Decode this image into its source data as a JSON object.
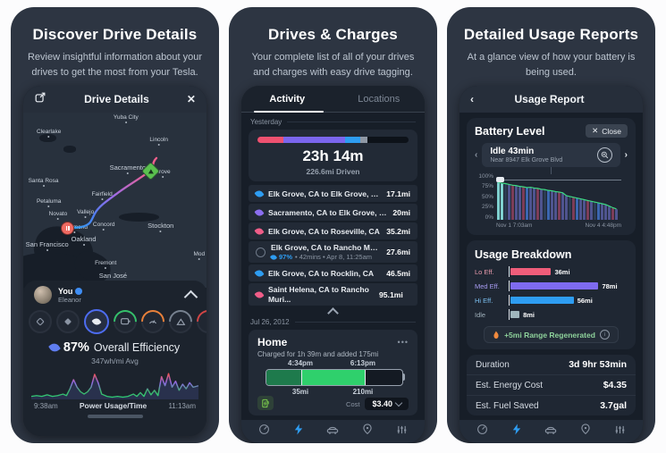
{
  "icons": {
    "close": "✕",
    "back": "‹",
    "forward": "›",
    "more": "•••",
    "info": "i"
  },
  "panel1": {
    "headline": "Discover Drive Details",
    "description": "Review insightful information about your drives to get the most from your Tesla.",
    "nav_title": "Drive Details",
    "map": {
      "cities": [
        "Yuba City",
        "Clearlake",
        "Lincoln",
        "Sacramento",
        "Santa Rosa",
        "Petaluma",
        "Fairfield",
        "Novato",
        "Vallejo",
        "Richmond",
        "Concord",
        "Stockton",
        "Oakland",
        "San Francisco",
        "Fremont",
        "San José",
        "Mod",
        "Grove"
      ]
    },
    "driver": {
      "you": "You",
      "car": "Eleanor"
    },
    "efficiency": {
      "value": "87%",
      "label": "Overall Efficiency",
      "avg": "347wh/mi Avg"
    }
  },
  "panel2": {
    "headline": "Drives & Charges",
    "description": "Your complete list of all of your drives and charges with easy drive tagging.",
    "tabs": [
      "Activity",
      "Locations"
    ],
    "section_date1": "Yesterday",
    "summary": {
      "duration": "23h 14m",
      "distance": "226.6mi Driven"
    },
    "drives": [
      {
        "route": "Elk Grove, CA to Elk Grove, CA",
        "distance": "17.1mi",
        "leaf_color": "#2e9df2"
      },
      {
        "route": "Sacramento, CA to Elk Grove, CA",
        "distance": "20mi",
        "leaf_color": "#8b6ef0"
      },
      {
        "route": "Elk Grove, CA to Roseville, CA",
        "distance": "35.2mi",
        "leaf_color": "#ef5d88"
      },
      {
        "route": "Elk Grove, CA to Rancho Muriett...",
        "distance": "27.6mi",
        "leaf_color": "#2e9df2",
        "meta_eff": "97%",
        "meta": "• 42mins • Apr 8, 11:25am"
      },
      {
        "route": "Elk Grove, CA to Rocklin, CA",
        "distance": "46.5mi",
        "leaf_color": "#2e9df2"
      },
      {
        "route": "Saint Helena, CA to Rancho Muri...",
        "distance": "95.1mi",
        "leaf_color": "#ef5d88"
      }
    ],
    "section_date2": "Jul 26, 2012",
    "charge": {
      "title": "Home",
      "subtitle": "Charged for 1h 39m and added 175mi",
      "start_time": "4:34pm",
      "end_time": "6:13pm",
      "start_mi": "35mi",
      "end_mi": "210mi",
      "cost_label": "Cost",
      "cost_value": "$3.40"
    }
  },
  "panel3": {
    "headline": "Detailed Usage Reports",
    "description": "At a glance view of how your battery is being used.",
    "nav_title": "Usage Report",
    "battery_section": {
      "title": "Battery Level",
      "close_label": "Close",
      "event_title": "Idle 43min",
      "event_subtitle": "Near 8947 Elk Grove Blvd"
    },
    "usage_section": {
      "title": "Usage Breakdown",
      "regen_label": "+5mi Range Regenerated"
    },
    "stats": [
      {
        "label": "Duration",
        "value": "3d 9hr 53min"
      },
      {
        "label": "Est. Energy Cost",
        "value": "$4.35"
      },
      {
        "label": "Est. Fuel Saved",
        "value": "3.7gal"
      }
    ]
  },
  "chart_data": [
    {
      "id": "power_usage",
      "type": "line",
      "title": "Power Usage/Time",
      "x_range": [
        "9:38am",
        "11:13am"
      ],
      "ylabel": "power",
      "baseline_y": 36,
      "points": [
        [
          0,
          36
        ],
        [
          6,
          35
        ],
        [
          12,
          36
        ],
        [
          18,
          34
        ],
        [
          24,
          36
        ],
        [
          30,
          35
        ],
        [
          36,
          33
        ],
        [
          40,
          35
        ],
        [
          44,
          26
        ],
        [
          48,
          14
        ],
        [
          52,
          24
        ],
        [
          56,
          30
        ],
        [
          60,
          33
        ],
        [
          64,
          30
        ],
        [
          68,
          24
        ],
        [
          72,
          7
        ],
        [
          76,
          18
        ],
        [
          80,
          33
        ],
        [
          86,
          36
        ],
        [
          92,
          37
        ],
        [
          98,
          36
        ],
        [
          104,
          37
        ],
        [
          110,
          36
        ],
        [
          116,
          33
        ],
        [
          120,
          36
        ],
        [
          124,
          31
        ],
        [
          128,
          36
        ],
        [
          132,
          26
        ],
        [
          136,
          34
        ],
        [
          140,
          28
        ],
        [
          144,
          35
        ],
        [
          148,
          10
        ],
        [
          152,
          22
        ],
        [
          156,
          6
        ],
        [
          160,
          24
        ],
        [
          164,
          16
        ],
        [
          168,
          28
        ],
        [
          172,
          20
        ],
        [
          176,
          26
        ],
        [
          180,
          18
        ],
        [
          184,
          24
        ],
        [
          190,
          22
        ]
      ]
    },
    {
      "id": "battery_level",
      "type": "bar+line",
      "ylabels": [
        "100%",
        "75%",
        "50%",
        "25%",
        "0%"
      ],
      "x_range": [
        "Nov 1 7:03am",
        "Nov 4 4:48pm"
      ],
      "heights": [
        93,
        91,
        90,
        88,
        86,
        85,
        83,
        82,
        80,
        81,
        79,
        78,
        76,
        75,
        73,
        72,
        70,
        69,
        67,
        60,
        58,
        56,
        54,
        52,
        50,
        48,
        46,
        44,
        42,
        40,
        38,
        34,
        30,
        27
      ],
      "color_idx": [
        0,
        0,
        4,
        1,
        2,
        1,
        1,
        2,
        3,
        1,
        1,
        2,
        1,
        4,
        3,
        1,
        1,
        2,
        1,
        1,
        4,
        2,
        3,
        1,
        1,
        2,
        1,
        4,
        3,
        1,
        1,
        1,
        2,
        1
      ],
      "palette": [
        "#7fd0cf",
        "#4f548f",
        "#7c3d58",
        "#3b66b0",
        "#2c3b53"
      ],
      "line_color": "#3ddc84"
    },
    {
      "id": "duration_split",
      "type": "stacked-bar",
      "segments": [
        {
          "color": "#ee5170",
          "pct": 17
        },
        {
          "color": "#7b66ee",
          "pct": 41
        },
        {
          "color": "#2e9df2",
          "pct": 10
        },
        {
          "color": "#8f98a5",
          "pct": 5
        }
      ]
    },
    {
      "id": "usage_breakdown",
      "type": "bar",
      "unit": "mi",
      "max": 80,
      "categories": [
        "Lo Eff.",
        "Med Eff.",
        "Hi Eff.",
        "Idle"
      ],
      "values": [
        36,
        78,
        56,
        8
      ],
      "labels": [
        "36mi",
        "78mi",
        "56mi",
        "8mi"
      ],
      "colors": [
        "#ef5d7a",
        "#7e6bf0",
        "#2e9df2",
        "#9fb6bd"
      ],
      "label_colors": [
        "#e89aab",
        "#a79bf0",
        "#7cc1f2",
        "#9fb0ba"
      ]
    },
    {
      "id": "charge_fill",
      "type": "battery",
      "pre_pct": 26,
      "added_pct": 46
    }
  ]
}
